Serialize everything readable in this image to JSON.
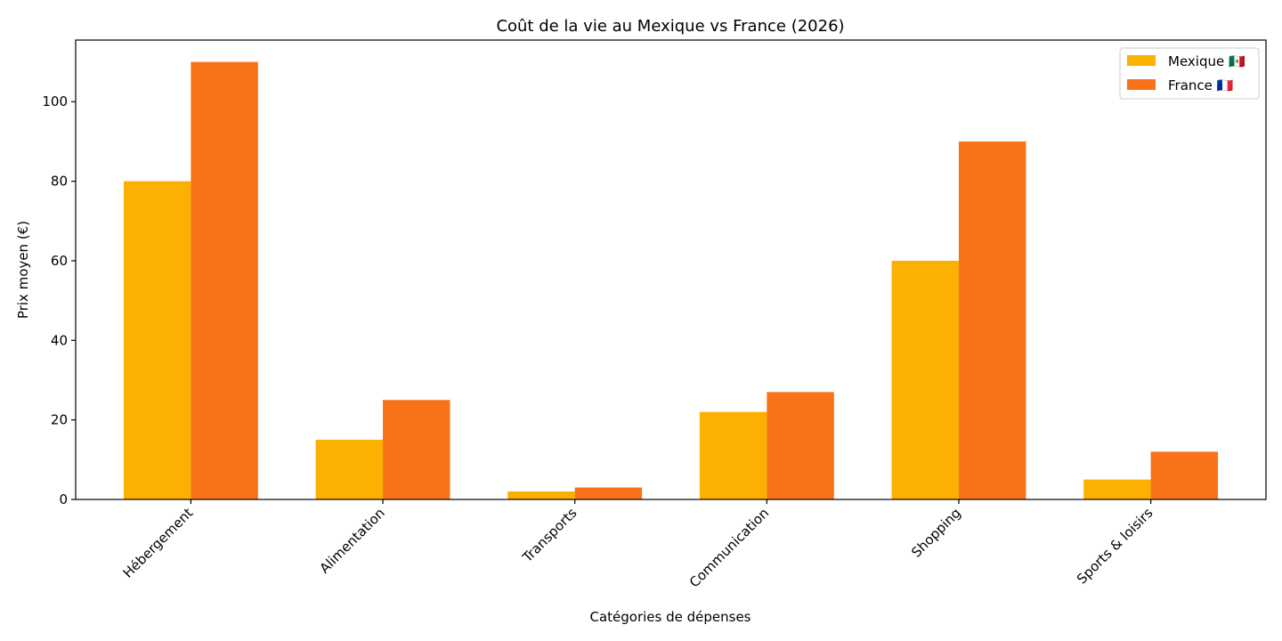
{
  "chart_data": {
    "type": "bar",
    "title": "Coût de la vie au Mexique vs France (2026)",
    "xlabel": "Catégories de dépenses",
    "ylabel": "Prix moyen (€)",
    "categories": [
      "Hébergement",
      "Alimentation",
      "Transports",
      "Communication",
      "Shopping",
      "Sports & loisirs"
    ],
    "series": [
      {
        "name": "Mexique 🇲🇽",
        "color": "#fbb002",
        "values": [
          80,
          15,
          2,
          22,
          60,
          5
        ]
      },
      {
        "name": "France 🇫🇷",
        "color": "#f8721a",
        "values": [
          110,
          25,
          3,
          27,
          90,
          12
        ]
      }
    ],
    "ylim": [
      0,
      115.5
    ],
    "yticks": [
      0,
      20,
      40,
      60,
      80,
      100
    ],
    "grid": false,
    "legend_position": "top-right"
  }
}
